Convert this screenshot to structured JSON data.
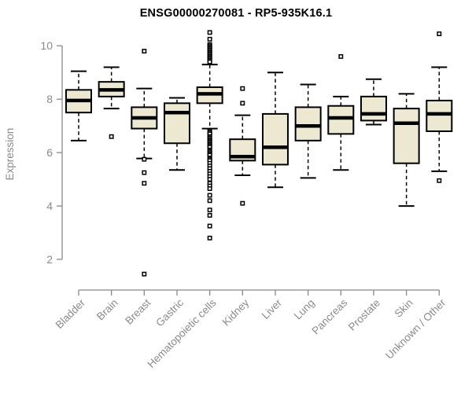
{
  "chart_data": {
    "type": "boxplot",
    "title": "ENSG00000270081 - RP5-935K16.1",
    "ylabel": "Expression",
    "xlabel": "",
    "yticks": [
      2,
      4,
      6,
      8,
      10
    ],
    "ylim_axis": [
      2,
      10
    ],
    "grid": false,
    "legend": "none",
    "categories": [
      "Bladder",
      "Brain",
      "Breast",
      "Gastric",
      "Hematopoietic cells",
      "Kidney",
      "Liver",
      "Lung",
      "Pancreas",
      "Prostate",
      "Skin",
      "Unknown / Other"
    ],
    "boxes": [
      {
        "category": "Bladder",
        "whisker_low": 6.45,
        "q1": 7.5,
        "median": 7.95,
        "q3": 8.35,
        "whisker_high": 9.05,
        "outliers": []
      },
      {
        "category": "Brain",
        "whisker_low": 7.65,
        "q1": 8.1,
        "median": 8.35,
        "q3": 8.65,
        "whisker_high": 9.2,
        "outliers": [
          6.6
        ]
      },
      {
        "category": "Breast",
        "whisker_low": 5.78,
        "q1": 6.9,
        "median": 7.3,
        "q3": 7.7,
        "whisker_high": 8.4,
        "outliers": [
          9.8,
          5.75,
          5.25,
          4.85,
          1.45
        ]
      },
      {
        "category": "Gastric",
        "whisker_low": 5.35,
        "q1": 6.35,
        "median": 7.5,
        "q3": 7.85,
        "whisker_high": 8.05,
        "outliers": []
      },
      {
        "category": "Hematopoietic cells",
        "whisker_low": 6.9,
        "q1": 7.85,
        "median": 8.2,
        "q3": 8.45,
        "whisker_high": 9.3,
        "outliers": [
          10.5,
          10.25,
          10.05,
          10.0,
          9.95,
          9.9,
          9.85,
          9.8,
          9.75,
          9.7,
          9.65,
          9.6,
          9.55,
          9.5,
          9.45,
          9.4,
          6.8,
          6.75,
          6.7,
          6.6,
          6.55,
          6.5,
          6.45,
          6.4,
          6.35,
          6.3,
          6.25,
          6.2,
          6.1,
          6.05,
          6.0,
          5.95,
          5.9,
          5.8,
          5.75,
          5.7,
          5.6,
          5.5,
          5.4,
          5.3,
          5.2,
          5.1,
          5.0,
          4.85,
          4.75,
          4.65,
          4.4,
          4.2,
          3.85,
          3.65,
          3.25,
          2.8
        ]
      },
      {
        "category": "Kidney",
        "whisker_low": 5.15,
        "q1": 5.7,
        "median": 5.85,
        "q3": 6.5,
        "whisker_high": 7.4,
        "outliers": [
          8.4,
          7.85,
          4.1
        ]
      },
      {
        "category": "Liver",
        "whisker_low": 4.7,
        "q1": 5.55,
        "median": 6.2,
        "q3": 7.45,
        "whisker_high": 9.0,
        "outliers": []
      },
      {
        "category": "Lung",
        "whisker_low": 5.05,
        "q1": 6.45,
        "median": 7.0,
        "q3": 7.7,
        "whisker_high": 8.55,
        "outliers": []
      },
      {
        "category": "Pancreas",
        "whisker_low": 5.35,
        "q1": 6.7,
        "median": 7.3,
        "q3": 7.75,
        "whisker_high": 8.1,
        "outliers": [
          9.6
        ]
      },
      {
        "category": "Prostate",
        "whisker_low": 7.05,
        "q1": 7.2,
        "median": 7.45,
        "q3": 8.1,
        "whisker_high": 8.75,
        "outliers": []
      },
      {
        "category": "Skin",
        "whisker_low": 4.0,
        "q1": 5.6,
        "median": 7.1,
        "q3": 7.65,
        "whisker_high": 8.2,
        "outliers": []
      },
      {
        "category": "Unknown / Other",
        "whisker_low": 5.3,
        "q1": 6.8,
        "median": 7.45,
        "q3": 7.95,
        "whisker_high": 9.2,
        "outliers": [
          10.45,
          4.95
        ]
      }
    ],
    "colors": {
      "box_fill": "#EDE8D1",
      "box_border": "#000000",
      "median": "#000000",
      "whisker": "#000000",
      "outlier_border": "#000000",
      "outlier_fill": "#ffffff",
      "axis_line": "#888888",
      "axis_text": "#8a8a8a",
      "title_text": "#000000",
      "background": "#ffffff"
    }
  }
}
